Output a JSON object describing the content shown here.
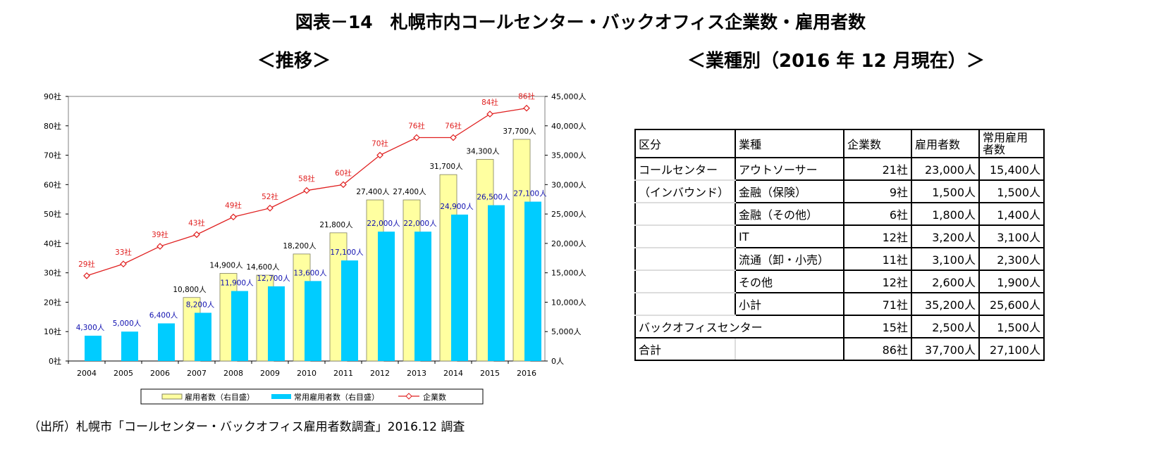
{
  "title": "図表－14　札幌市内コールセンター・バックオフィス企業数・雇用者数",
  "left_subtitle": "＜推移＞",
  "right_subtitle": "＜業種別（2016 年 12 月現在）＞",
  "source": "（出所）札幌市「コールセンター・バックオフィス雇用者数調査」2016.12 調査",
  "chart_data": {
    "type": "bar",
    "categories": [
      "2004",
      "2005",
      "2006",
      "2007",
      "2008",
      "2009",
      "2010",
      "2011",
      "2012",
      "2013",
      "2014",
      "2015",
      "2016"
    ],
    "series": [
      {
        "name": "雇用者数（右目盛）",
        "type": "bar",
        "axis": "right",
        "color": "#FFFFA0",
        "values": [
          null,
          null,
          null,
          10800,
          14900,
          14600,
          18200,
          21800,
          27400,
          27400,
          31700,
          34300,
          37700
        ],
        "labels": [
          "",
          "",
          "",
          "10,800人",
          "14,900人",
          "14,600人",
          "18,200人",
          "21,800人",
          "27,400人",
          "27,400人",
          "31,700人",
          "34,300人",
          "37,700人"
        ]
      },
      {
        "name": "常用雇用者数（右目盛）",
        "type": "bar",
        "axis": "right",
        "color": "#00CCFF",
        "values": [
          4300,
          5000,
          6400,
          8200,
          11900,
          12700,
          13600,
          17100,
          22000,
          22000,
          24900,
          26500,
          27100
        ],
        "labels": [
          "4,300人",
          "5,000人",
          "6,400人",
          "8,200人",
          "11,900人",
          "12,700人",
          "13,600人",
          "17,100人",
          "22,000人",
          "22,000人",
          "24,900人",
          "26,500人",
          "27,100人"
        ]
      },
      {
        "name": "企業数",
        "type": "line",
        "axis": "left",
        "color": "#E02020",
        "values": [
          29,
          33,
          39,
          43,
          49,
          52,
          58,
          60,
          70,
          76,
          76,
          84,
          86
        ],
        "labels": [
          "29社",
          "33社",
          "39社",
          "43社",
          "49社",
          "52社",
          "58社",
          "60社",
          "70社",
          "76社",
          "76社",
          "84社",
          "86社"
        ]
      }
    ],
    "left_axis": {
      "ylim": [
        0,
        90
      ],
      "ticks": [
        "0社",
        "10社",
        "20社",
        "30社",
        "40社",
        "50社",
        "60社",
        "70社",
        "80社",
        "90社"
      ]
    },
    "right_axis": {
      "ylim": [
        0,
        45000
      ],
      "ticks": [
        "0人",
        "5,000人",
        "10,000人",
        "15,000人",
        "20,000人",
        "25,000人",
        "30,000人",
        "35,000人",
        "40,000人",
        "45,000人"
      ]
    },
    "grid": false,
    "legend": "bottom"
  },
  "table": {
    "headers": [
      "区分",
      "業種",
      "企業数",
      "雇用者数",
      "常用雇用者数"
    ],
    "header_lines": [
      "常用雇用",
      "者数"
    ],
    "rows": [
      [
        "コールセンター",
        "アウトソーサー",
        "21社",
        "23,000人",
        "15,400人"
      ],
      [
        "（インバウンド）",
        "金融（保険）",
        "9社",
        "1,500人",
        "1,500人"
      ],
      [
        "",
        "金融（その他）",
        "6社",
        "1,800人",
        "1,400人"
      ],
      [
        "",
        "IT",
        "12社",
        "3,200人",
        "3,100人"
      ],
      [
        "",
        "流通（卸・小売）",
        "11社",
        "3,100人",
        "2,300人"
      ],
      [
        "",
        "その他",
        "12社",
        "2,600人",
        "1,900人"
      ],
      [
        "",
        "小計",
        "71社",
        "35,200人",
        "25,600人"
      ],
      [
        "バックオフィスセンター",
        "",
        "15社",
        "2,500人",
        "1,500人"
      ],
      [
        "合計",
        "",
        "86社",
        "37,700人",
        "27,100人"
      ]
    ]
  }
}
